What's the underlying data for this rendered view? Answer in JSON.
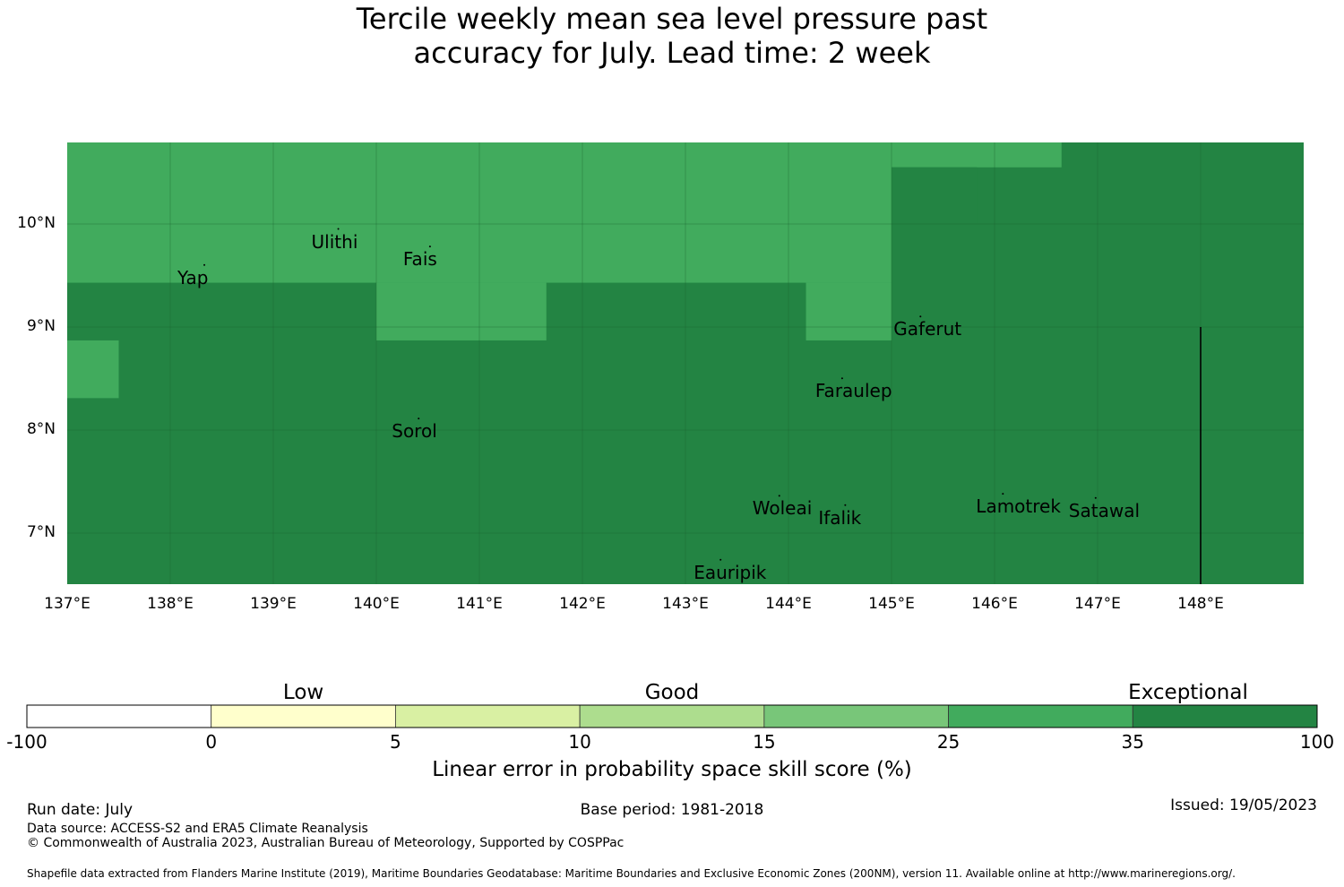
{
  "title": {
    "line1": "Tercile weekly mean sea level pressure past",
    "line2": "accuracy for July. Lead time: 2 week"
  },
  "map": {
    "lon_range": [
      137,
      149
    ],
    "lat_range": [
      6.5,
      10.8
    ],
    "x_ticks": [
      "137°E",
      "138°E",
      "139°E",
      "140°E",
      "141°E",
      "142°E",
      "143°E",
      "144°E",
      "145°E",
      "146°E",
      "147°E",
      "148°E"
    ],
    "y_ticks": [
      "10°N",
      "9°N",
      "8°N",
      "7°N"
    ],
    "colors": {
      "good_high": "#41ab5d",
      "exceptional": "#238443",
      "grid": "#1a5e2e",
      "boundary": "#000000"
    },
    "cells": [
      {
        "lon0": 137.0,
        "lon1": 149.0,
        "lat0": 6.5,
        "lat1": 10.8,
        "class": "exceptional"
      },
      {
        "lon0": 137.0,
        "lon1": 145.0,
        "lat0": 10.0,
        "lat1": 10.8,
        "class": "good_high"
      },
      {
        "lon0": 145.0,
        "lon1": 146.65,
        "lat0": 10.55,
        "lat1": 10.8,
        "class": "good_high"
      },
      {
        "lon0": 137.0,
        "lon1": 145.0,
        "lat0": 9.43,
        "lat1": 10.0,
        "class": "good_high"
      },
      {
        "lon0": 140.0,
        "lon1": 141.65,
        "lat0": 8.87,
        "lat1": 9.43,
        "class": "good_high"
      },
      {
        "lon0": 144.17,
        "lon1": 145.0,
        "lat0": 8.87,
        "lat1": 9.43,
        "class": "good_high"
      },
      {
        "lon0": 137.0,
        "lon1": 137.5,
        "lat0": 8.31,
        "lat1": 8.87,
        "class": "good_high"
      },
      {
        "lon0": 145.0,
        "lon1": 145.83,
        "lat0": 10.0,
        "lat1": 10.55,
        "class": "exceptional"
      }
    ],
    "boundary_line": {
      "lon": 148.0,
      "lat0": 6.5,
      "lat1": 9.0
    },
    "places": [
      {
        "name": "Ulithi",
        "lon": 139.37,
        "lat": 9.83
      },
      {
        "name": "Fais",
        "lon": 140.26,
        "lat": 9.66
      },
      {
        "name": "Yap",
        "lon": 138.07,
        "lat": 9.48
      },
      {
        "name": "Gaferut",
        "lon": 145.02,
        "lat": 8.98
      },
      {
        "name": "Faraulep",
        "lon": 144.26,
        "lat": 8.38
      },
      {
        "name": "Sorol",
        "lon": 140.15,
        "lat": 7.99
      },
      {
        "name": "Woleai",
        "lon": 143.65,
        "lat": 7.24
      },
      {
        "name": "Ifalik",
        "lon": 144.29,
        "lat": 7.15
      },
      {
        "name": "Lamotrek",
        "lon": 145.82,
        "lat": 7.26
      },
      {
        "name": "Satawal",
        "lon": 146.72,
        "lat": 7.22
      },
      {
        "name": "Eauripik",
        "lon": 143.08,
        "lat": 6.62
      }
    ]
  },
  "colorbar": {
    "categories": [
      "Low",
      "Good",
      "Exceptional"
    ],
    "tick_labels": [
      "-100",
      "0",
      "5",
      "10",
      "15",
      "25",
      "35",
      "100"
    ],
    "segment_colors": [
      "#ffffff",
      "#ffffcc",
      "#d9f0a3",
      "#addd8e",
      "#78c679",
      "#41ab5d",
      "#238443"
    ],
    "label": "Linear error in probability space skill score (%)"
  },
  "footer": {
    "run_date": "Run date: July",
    "base_period": "Base period: 1981-2018",
    "issued": "Issued: 19/05/2023",
    "data_source": "Data source: ACCESS-S2 and ERA5 Climate Reanalysis",
    "copyright": "© Commonwealth of Australia 2023, Australian Bureau of Meteorology, Supported by COSPPac",
    "shapefile": "Shapefile data extracted from Flanders Marine Institute (2019), Maritime Boundaries Geodatabase: Maritime Boundaries and Exclusive Economic Zones (200NM), version 11. Available online at http://www.marineregions.org/."
  }
}
